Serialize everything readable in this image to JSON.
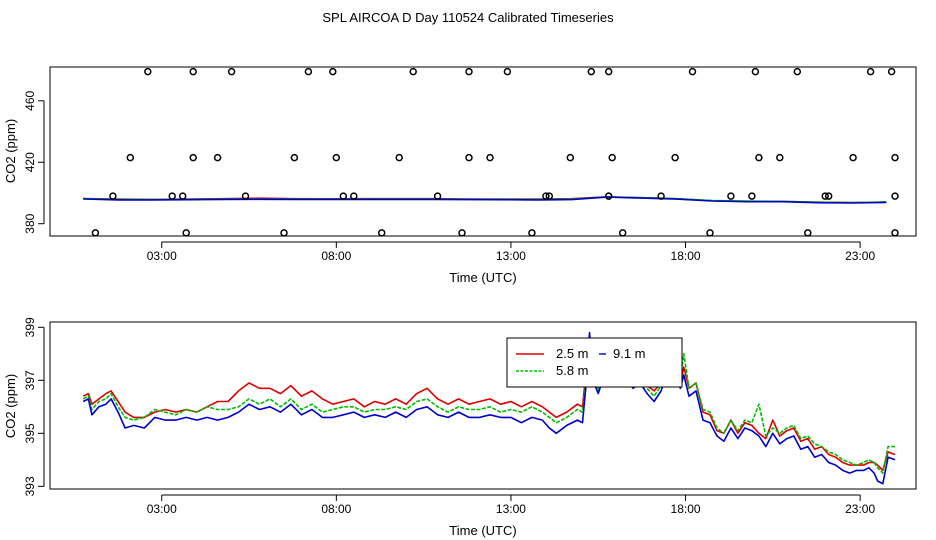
{
  "title": "SPL AIRCOA D  Day 110524  Calibrated Timeseries",
  "colors": {
    "red": "#dd0000",
    "green": "#00bb00",
    "blue": "#0000cc",
    "frame": "#000000"
  },
  "chart_data": [
    {
      "type": "scatter",
      "xlabel": "Time (UTC)",
      "ylabel": "CO2 (ppm)",
      "xlim": [
        -0.2,
        24.6
      ],
      "ylim": [
        372,
        482
      ],
      "xticks": [
        3,
        8,
        13,
        18,
        23
      ],
      "xtick_labels": [
        "03:00",
        "08:00",
        "13:00",
        "18:00",
        "23:00"
      ],
      "yticks": [
        380,
        420,
        460
      ],
      "ytick_labels": [
        "380",
        "420",
        "460"
      ],
      "line_series": [
        {
          "name": "2.5 m",
          "color": "#dd0000",
          "x": [
            0.75,
            1.75,
            2.75,
            3.75,
            4.75,
            5.75,
            6.75,
            7.75,
            8.75,
            9.75,
            10.75,
            11.75,
            12.75,
            13.75,
            14.75,
            15.75,
            16.75,
            17.75,
            18.75,
            19.75,
            20.75,
            21.75,
            22.75,
            23.75
          ],
          "values": [
            396.4,
            396.0,
            395.8,
            396.0,
            396.3,
            396.6,
            396.3,
            396.2,
            396.3,
            396.3,
            396.3,
            396.1,
            396.0,
            396.0,
            396.3,
            397.5,
            396.9,
            396.2,
            395.0,
            394.5,
            394.5,
            394.0,
            393.8,
            394.0
          ]
        },
        {
          "name": "5.8 m",
          "color": "#00bb00",
          "x": [
            0.75,
            1.75,
            2.75,
            3.75,
            4.75,
            5.75,
            6.75,
            7.75,
            8.75,
            9.75,
            10.75,
            11.75,
            12.75,
            13.75,
            14.75,
            15.75,
            16.75,
            17.75,
            18.75,
            19.75,
            20.75,
            21.75,
            22.75,
            23.75
          ],
          "values": [
            396.3,
            395.8,
            395.7,
            395.8,
            396.0,
            396.1,
            396.0,
            396.0,
            396.0,
            396.0,
            396.0,
            395.9,
            395.9,
            395.8,
            396.0,
            397.4,
            396.9,
            396.3,
            395.1,
            394.7,
            394.5,
            394.0,
            393.7,
            394.2
          ]
        },
        {
          "name": "9.1 m",
          "color": "#0000cc",
          "x": [
            0.75,
            1.75,
            2.75,
            3.75,
            4.75,
            5.75,
            6.75,
            7.75,
            8.75,
            9.75,
            10.75,
            11.75,
            12.75,
            13.75,
            14.75,
            15.75,
            16.75,
            17.75,
            18.75,
            19.75,
            20.75,
            21.75,
            22.75,
            23.75
          ],
          "values": [
            396.1,
            395.5,
            395.5,
            395.6,
            395.8,
            395.9,
            395.8,
            395.8,
            395.8,
            395.8,
            395.8,
            395.7,
            395.6,
            395.5,
            395.7,
            397.3,
            396.7,
            396.0,
            394.8,
            394.3,
            394.3,
            393.7,
            393.5,
            393.9
          ]
        }
      ],
      "points": {
        "x": [
          1.1,
          3.7,
          6.5,
          9.3,
          11.6,
          13.6,
          16.2,
          18.7,
          21.5,
          24.0,
          1.6,
          3.3,
          5.4,
          8.5,
          10.9,
          14.1,
          15.8,
          17.3,
          19.3,
          22.1,
          24.0,
          2.1,
          3.9,
          4.6,
          6.8,
          8.0,
          9.8,
          11.8,
          12.4,
          14.7,
          15.9,
          17.7,
          20.1,
          20.7,
          22.8,
          24.0,
          2.6,
          3.9,
          5.0,
          7.2,
          7.9,
          10.2,
          11.8,
          12.9,
          15.3,
          15.8,
          18.2,
          20.0,
          21.2,
          23.3,
          23.9,
          3.6,
          8.2,
          14.0,
          15.8,
          19.9,
          22.0
        ],
        "y": [
          374,
          374,
          374,
          374,
          374,
          374,
          374,
          374,
          374,
          374,
          398,
          398,
          398,
          398,
          398,
          398,
          398,
          398,
          398,
          398,
          398,
          423,
          423,
          423,
          423,
          423,
          423,
          423,
          423,
          423,
          423,
          423,
          423,
          423,
          423,
          423,
          479,
          479,
          479,
          479,
          479,
          479,
          479,
          479,
          479,
          479,
          479,
          479,
          479,
          479,
          479,
          398,
          398,
          398,
          398,
          398,
          398
        ]
      }
    },
    {
      "type": "line",
      "xlabel": "Time (UTC)",
      "ylabel": "CO2 (ppm)",
      "xlim": [
        -0.2,
        24.6
      ],
      "ylim": [
        392.9,
        399.2
      ],
      "xticks": [
        3,
        8,
        13,
        18,
        23
      ],
      "xtick_labels": [
        "03:00",
        "08:00",
        "13:00",
        "18:00",
        "23:00"
      ],
      "yticks": [
        393,
        395,
        397,
        399
      ],
      "ytick_labels": [
        "393",
        "395",
        "397",
        "399"
      ],
      "legend": {
        "placement": "top-center",
        "entries": [
          {
            "label": "2.5 m",
            "color": "#dd0000"
          },
          {
            "label": "5.8 m",
            "color": "#00bb00"
          },
          {
            "label": "9.1 m",
            "color": "#0000cc"
          }
        ]
      },
      "x": [
        0.75,
        0.9,
        1.0,
        1.2,
        1.4,
        1.55,
        1.75,
        1.95,
        2.2,
        2.5,
        2.8,
        3.1,
        3.4,
        3.7,
        4.0,
        4.3,
        4.6,
        4.9,
        5.2,
        5.5,
        5.8,
        6.1,
        6.4,
        6.7,
        7.0,
        7.3,
        7.6,
        7.9,
        8.2,
        8.5,
        8.8,
        9.1,
        9.4,
        9.7,
        10.0,
        10.3,
        10.6,
        10.9,
        11.2,
        11.5,
        11.8,
        12.1,
        12.4,
        12.7,
        13.0,
        13.3,
        13.6,
        13.9,
        14.1,
        14.3,
        14.6,
        14.9,
        15.05,
        15.15,
        15.25,
        15.35,
        15.5,
        15.7,
        15.9,
        16.1,
        16.3,
        16.5,
        16.7,
        16.9,
        17.1,
        17.3,
        17.5,
        17.6,
        17.75,
        17.85,
        17.95,
        18.1,
        18.3,
        18.5,
        18.7,
        18.9,
        19.1,
        19.3,
        19.5,
        19.7,
        19.9,
        20.1,
        20.3,
        20.5,
        20.7,
        20.9,
        21.1,
        21.3,
        21.5,
        21.7,
        21.9,
        22.1,
        22.3,
        22.5,
        22.7,
        22.9,
        23.1,
        23.25,
        23.4,
        23.5,
        23.65,
        23.8,
        24.0
      ],
      "series": [
        {
          "name": "2.5 m",
          "values": [
            396.4,
            396.5,
            396.1,
            396.3,
            396.5,
            396.6,
            396.2,
            395.8,
            395.6,
            395.6,
            395.8,
            395.9,
            395.8,
            395.9,
            395.8,
            396.0,
            396.2,
            396.2,
            396.6,
            396.9,
            396.7,
            396.7,
            396.5,
            396.8,
            396.4,
            396.6,
            396.3,
            396.1,
            396.2,
            396.3,
            396.0,
            396.2,
            396.1,
            396.3,
            396.1,
            396.5,
            396.7,
            396.3,
            396.1,
            396.3,
            396.1,
            396.2,
            396.3,
            396.1,
            396.2,
            396.0,
            396.2,
            396.0,
            395.8,
            395.6,
            395.8,
            396.1,
            396.0,
            397.3,
            398.5,
            397.4,
            396.8,
            397.5,
            397.2,
            397.6,
            397.3,
            397.0,
            397.2,
            396.8,
            396.6,
            396.9,
            397.5,
            397.3,
            397.6,
            396.9,
            397.5,
            396.7,
            396.9,
            395.8,
            395.7,
            395.1,
            395.0,
            395.5,
            395.0,
            395.4,
            395.3,
            395.0,
            394.8,
            395.5,
            394.9,
            395.1,
            395.2,
            394.7,
            394.8,
            394.4,
            394.5,
            394.2,
            394.1,
            393.9,
            393.8,
            393.8,
            393.8,
            393.9,
            393.9,
            393.8,
            393.6,
            394.3,
            394.2
          ]
        },
        {
          "name": "5.8 m",
          "values": [
            396.3,
            396.4,
            395.9,
            396.2,
            396.3,
            396.5,
            396.0,
            395.6,
            395.5,
            395.6,
            395.9,
            395.8,
            395.7,
            395.9,
            395.8,
            396.0,
            395.9,
            395.9,
            396.0,
            396.3,
            396.1,
            396.3,
            396.0,
            396.3,
            395.9,
            396.1,
            395.8,
            395.9,
            396.0,
            396.0,
            395.8,
            395.9,
            395.9,
            396.0,
            395.9,
            396.2,
            396.3,
            396.0,
            395.8,
            396.0,
            395.9,
            395.9,
            396.0,
            395.8,
            395.9,
            395.8,
            396.0,
            395.8,
            395.6,
            395.4,
            395.6,
            395.9,
            395.8,
            397.0,
            398.2,
            397.3,
            396.6,
            397.4,
            397.0,
            397.5,
            397.2,
            396.9,
            397.1,
            396.7,
            396.4,
            396.8,
            397.6,
            397.3,
            397.8,
            397.0,
            398.0,
            396.7,
            396.9,
            395.9,
            395.8,
            395.2,
            395.0,
            395.5,
            395.1,
            395.5,
            395.4,
            396.1,
            394.9,
            395.2,
            395.0,
            395.2,
            395.3,
            394.8,
            394.9,
            394.6,
            394.5,
            394.3,
            394.2,
            394.0,
            393.9,
            393.8,
            393.9,
            394.0,
            393.9,
            393.7,
            393.5,
            394.5,
            394.5
          ]
        },
        {
          "name": "9.1 m",
          "values": [
            396.2,
            396.3,
            395.7,
            396.0,
            396.1,
            396.3,
            395.8,
            395.2,
            395.3,
            395.2,
            395.6,
            395.5,
            395.5,
            395.6,
            395.5,
            395.6,
            395.5,
            395.6,
            395.8,
            396.1,
            395.9,
            396.0,
            395.8,
            396.1,
            395.7,
            395.9,
            395.6,
            395.6,
            395.7,
            395.8,
            395.6,
            395.7,
            395.6,
            395.8,
            395.6,
            395.9,
            396.0,
            395.7,
            395.6,
            395.8,
            395.6,
            395.6,
            395.7,
            395.6,
            395.6,
            395.4,
            395.6,
            395.5,
            395.2,
            395.0,
            395.3,
            395.5,
            395.4,
            396.8,
            398.8,
            397.0,
            396.5,
            397.3,
            396.9,
            397.3,
            397.0,
            396.7,
            396.9,
            396.5,
            396.2,
            396.6,
            397.4,
            397.1,
            397.4,
            396.7,
            397.2,
            396.4,
            396.6,
            395.5,
            395.4,
            394.9,
            394.7,
            395.2,
            394.8,
            395.2,
            395.1,
            394.9,
            394.5,
            395.0,
            394.6,
            394.8,
            394.9,
            394.4,
            394.5,
            394.1,
            394.2,
            393.9,
            393.8,
            393.6,
            393.5,
            393.6,
            393.6,
            393.7,
            393.5,
            393.2,
            393.1,
            394.1,
            394.0
          ]
        }
      ]
    }
  ]
}
